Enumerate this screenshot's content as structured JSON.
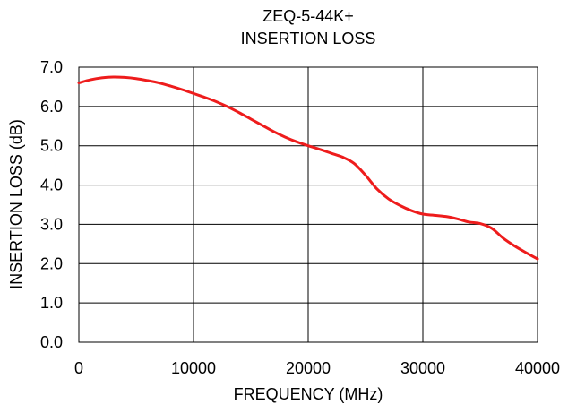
{
  "chart_data": {
    "type": "line",
    "title": "ZEQ-5-44K+",
    "subtitle": "INSERTION LOSS",
    "xlabel": "FREQUENCY (MHz)",
    "ylabel": "INSERTION LOSS (dB)",
    "xlim": [
      0,
      40000
    ],
    "ylim": [
      0,
      7
    ],
    "x_ticks": [
      0,
      10000,
      20000,
      30000,
      40000
    ],
    "y_ticks": [
      0,
      1,
      2,
      3,
      4,
      5,
      6,
      7
    ],
    "x_tick_labels": [
      "0",
      "10000",
      "20000",
      "30000",
      "40000"
    ],
    "y_tick_labels": [
      "0.0",
      "1.0",
      "2.0",
      "3.0",
      "4.0",
      "5.0",
      "6.0",
      "7.0"
    ],
    "grid": true,
    "legend": "none",
    "series": [
      {
        "color": "#ee1c1c",
        "x": [
          0,
          1000,
          2000,
          3000,
          4000,
          5000,
          6000,
          7000,
          8000,
          9000,
          10000,
          11000,
          12000,
          13000,
          14000,
          15000,
          16000,
          17000,
          18000,
          19000,
          20000,
          21000,
          22000,
          23000,
          24000,
          25000,
          26000,
          27000,
          28000,
          29000,
          30000,
          31000,
          32000,
          33000,
          34000,
          35000,
          36000,
          37000,
          38000,
          39000,
          40000
        ],
        "y": [
          6.6,
          6.68,
          6.73,
          6.75,
          6.74,
          6.71,
          6.66,
          6.6,
          6.52,
          6.43,
          6.33,
          6.23,
          6.12,
          5.99,
          5.84,
          5.68,
          5.52,
          5.36,
          5.22,
          5.1,
          5.0,
          4.91,
          4.81,
          4.71,
          4.55,
          4.25,
          3.9,
          3.65,
          3.48,
          3.35,
          3.26,
          3.23,
          3.2,
          3.14,
          3.06,
          3.02,
          2.9,
          2.65,
          2.45,
          2.28,
          2.12
        ]
      }
    ]
  }
}
